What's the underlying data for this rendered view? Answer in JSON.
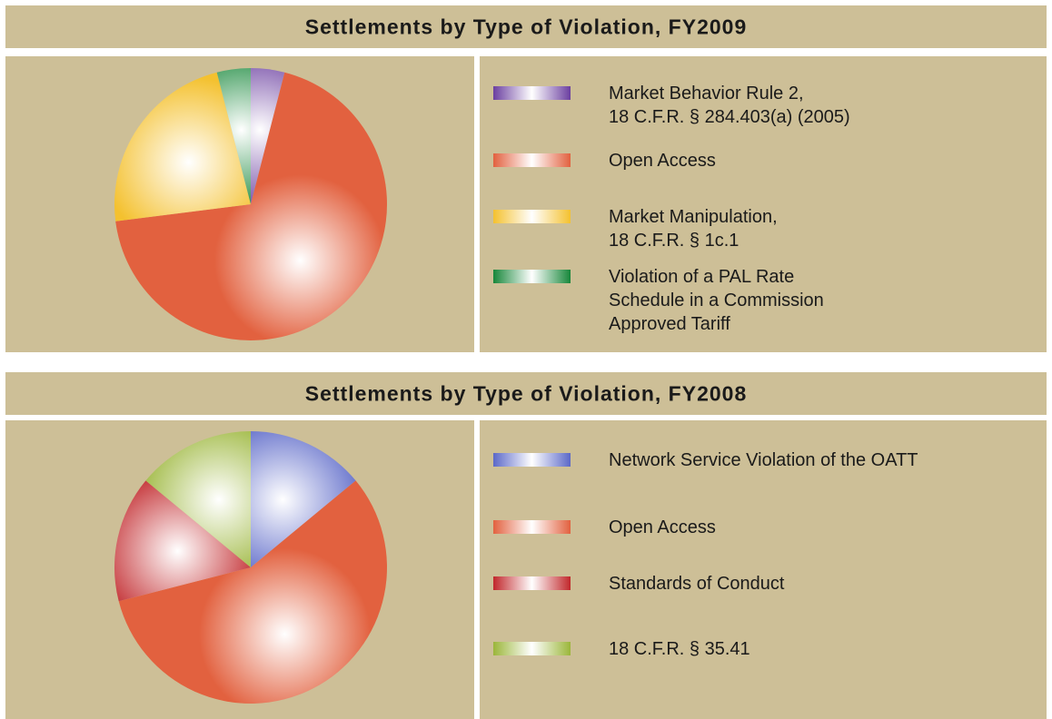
{
  "chart_data": [
    {
      "type": "pie",
      "title": "Settlements by Type of Violation, FY2009",
      "categories": [
        "Market Behavior Rule 2,\n18 C.F.R. § 284.403(a) (2005)",
        "Open Access",
        "Market Manipulation,\n18 C.F.R. § 1c.1",
        "Violation of a PAL Rate\nSchedule in a Commission\nApproved Tariff"
      ],
      "values": [
        4,
        69,
        23,
        4
      ],
      "colors": [
        "#6b3fa0",
        "#e2613f",
        "#f4c12f",
        "#17873a"
      ]
    },
    {
      "type": "pie",
      "title": "Settlements by Type of Violation, FY2008",
      "categories": [
        "Network Service Violation of the OATT",
        "Open Access",
        "Standards of Conduct",
        "18 C.F.R. § 35.41"
      ],
      "values": [
        14,
        57,
        15,
        14
      ],
      "colors": [
        "#5b68c8",
        "#e2613f",
        "#c1272b",
        "#9bb63a"
      ]
    }
  ]
}
